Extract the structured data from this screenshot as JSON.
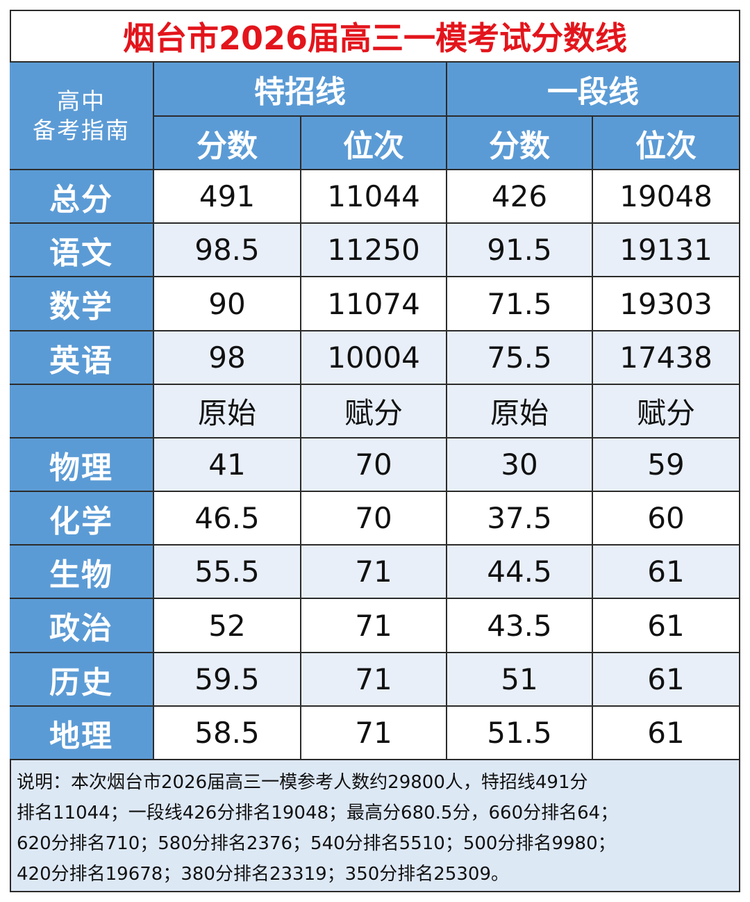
{
  "header": {
    "title": "烟台市2026届高三一模考试分数线",
    "corner": [
      "高中",
      "备考指南"
    ],
    "groups": [
      "特招线",
      "一段线"
    ],
    "subheaders": [
      "分数",
      "位次",
      "分数",
      "位次"
    ]
  },
  "table": {
    "rows": [
      {
        "label": "总分",
        "cells": [
          491,
          11044,
          426,
          19048
        ]
      },
      {
        "label": "语文",
        "cells": [
          98.5,
          11250,
          91.5,
          19131
        ]
      },
      {
        "label": "数学",
        "cells": [
          90,
          11074,
          71.5,
          19303
        ]
      },
      {
        "label": "英语",
        "cells": [
          98,
          10004,
          75.5,
          17438
        ]
      }
    ],
    "subheaders2": [
      "原始",
      "赋分",
      "原始",
      "赋分"
    ],
    "rows2": [
      {
        "label": "物理",
        "cells": [
          41,
          70,
          30,
          59
        ]
      },
      {
        "label": "化学",
        "cells": [
          46.5,
          70,
          37.5,
          60
        ]
      },
      {
        "label": "生物",
        "cells": [
          55.5,
          71,
          44.5,
          61
        ]
      },
      {
        "label": "政治",
        "cells": [
          52,
          71,
          43.5,
          61
        ]
      },
      {
        "label": "历史",
        "cells": [
          59.5,
          71,
          51,
          61
        ]
      },
      {
        "label": "地理",
        "cells": [
          58.5,
          71,
          51.5,
          61
        ]
      }
    ]
  },
  "note": {
    "lines": [
      "说明：本次烟台市2026届高三一模参考人数约29800人，特招线491分",
      "排名11044；一段线426分排名19048；最高分680.5分，660分排名64；",
      "620分排名710；580分排名2376；540分排名5510；500分排名9980；",
      "420分排名19678；380分排名23319；350分排名25309。"
    ]
  }
}
